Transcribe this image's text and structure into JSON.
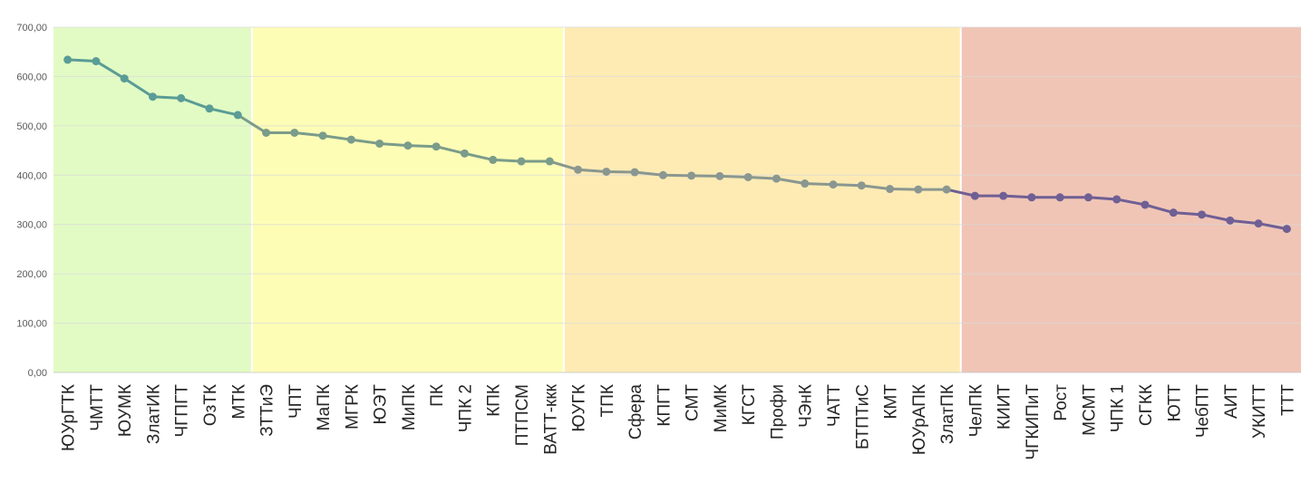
{
  "chart_data": {
    "type": "line",
    "title": "",
    "xlabel": "",
    "ylabel": "",
    "ylim": [
      0,
      700
    ],
    "yticks": [
      "0,00",
      "100,00",
      "200,00",
      "300,00",
      "400,00",
      "500,00",
      "600,00",
      "700,00"
    ],
    "grid": true,
    "legend": "none",
    "categories": [
      "ЮУрГТК",
      "ЧМТТ",
      "ЮУМК",
      "ЗлатИК",
      "ЧГПГТ",
      "ОзТК",
      "МТК",
      "ЗТТиЭ",
      "ЧПТ",
      "МаПК",
      "МГРК",
      "ЮЭТ",
      "МиПК",
      "ПК",
      "ЧПК 2",
      "КПК",
      "ПТПСМ",
      "ВАТТ-ккк",
      "ЮУГК",
      "ТПК",
      "Сфера",
      "КПГТ",
      "СМТ",
      "МиМК",
      "КГСТ",
      "Профи",
      "ЧЭнК",
      "ЧАТТ",
      "БТПТиС",
      "КМТ",
      "ЮУрАПК",
      "ЗлатПК",
      "ЧелПК",
      "КИИТ",
      "ЧГКИПиТ",
      "Рост",
      "МСМТ",
      "ЧПК 1",
      "СГКК",
      "ЮТТ",
      "ЧебПТ",
      "АИТ",
      "УКИТТ",
      "ТТТ"
    ],
    "values": [
      634,
      631,
      596,
      559,
      556,
      535,
      522,
      486,
      486,
      480,
      472,
      464,
      460,
      458,
      444,
      431,
      428,
      428,
      411,
      407,
      406,
      400,
      399,
      398,
      396,
      393,
      383,
      381,
      379,
      372,
      371,
      371,
      358,
      358,
      355,
      355,
      355,
      351,
      340,
      324,
      320,
      308,
      302,
      291
    ],
    "zones": [
      {
        "from": 0,
        "to": 6,
        "color": "#e2fbc4"
      },
      {
        "from": 7,
        "to": 17,
        "color": "#fefdb6"
      },
      {
        "from": 18,
        "to": 31,
        "color": "#feebb4"
      },
      {
        "from": 32,
        "to": 43,
        "color": "#f0c5b6"
      }
    ],
    "line_colors": [
      "#5a9c96",
      "#7a9c8a",
      "#8a9790",
      "#6f5f94"
    ]
  }
}
